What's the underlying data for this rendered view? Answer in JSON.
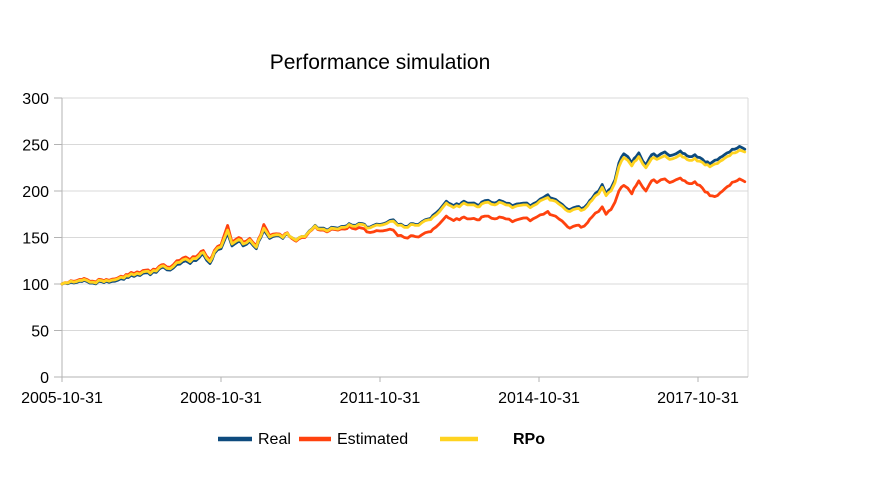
{
  "chart_data": {
    "type": "line",
    "title": "Performance simulation",
    "x_axis": {
      "tick_labels": [
        "2005-10-31",
        "2008-10-31",
        "2011-10-31",
        "2014-10-31",
        "2017-10-31"
      ],
      "tick_positions_months": [
        0,
        36,
        72,
        108,
        144
      ]
    },
    "y_axis": {
      "tick_labels": [
        "0",
        "50",
        "100",
        "150",
        "200",
        "250",
        "300"
      ],
      "tick_values": [
        0,
        50,
        100,
        150,
        200,
        250,
        300
      ],
      "range": [
        0,
        300
      ]
    },
    "grid": "horizontal-only",
    "legend_position": "bottom-center",
    "x_months_since_2005_10_31": [
      0,
      2,
      4,
      5,
      7,
      9,
      10,
      12,
      14,
      15,
      17,
      19,
      20,
      22,
      23,
      24.5,
      26,
      28,
      29,
      31,
      32,
      33.5,
      34.5,
      36,
      37.5,
      38.5,
      40,
      41,
      42.5,
      44,
      45,
      45.7,
      47,
      48.5,
      50,
      51,
      52,
      53,
      55,
      56,
      57.3,
      58.5,
      60,
      61,
      62.5,
      64,
      65,
      66.5,
      68,
      69,
      70.5,
      72,
      73.5,
      75,
      76,
      77.5,
      79,
      80,
      81.5,
      83,
      84,
      85.5,
      87,
      88,
      90,
      91,
      92.5,
      94,
      95,
      96.5,
      98,
      99,
      100.5,
      102,
      103,
      104.5,
      106,
      107.5,
      109,
      110,
      111,
      112.5,
      114,
      115,
      116.5,
      117.5,
      119,
      120,
      121.5,
      122.3,
      123.2,
      124.3,
      125.2,
      126.1,
      127.2,
      128.1,
      129,
      130,
      130.6,
      131.5,
      132.2,
      133,
      134,
      134.7,
      135.6,
      136.5,
      137.6,
      139,
      140,
      141,
      142,
      143.3,
      144.4,
      145.6,
      146.7,
      147.8,
      149,
      150,
      151.2,
      152.3,
      153.4,
      154.6
    ],
    "series": [
      {
        "name": "Real",
        "color": "#0e4b7e",
        "label_bold": false,
        "values": [
          100,
          102,
          103,
          104,
          101,
          102.5,
          103,
          103,
          105,
          107,
          110,
          112,
          110,
          116,
          118,
          115,
          121,
          125,
          122,
          128,
          132,
          122,
          133,
          138,
          155,
          141,
          146,
          141,
          146,
          138,
          150,
          158,
          149,
          152,
          149,
          154,
          150,
          147,
          151,
          157,
          163,
          160,
          158,
          161,
          160,
          162,
          165,
          163,
          165,
          161,
          163,
          164,
          166,
          169,
          164,
          162,
          165,
          164,
          167,
          170,
          174,
          180,
          189,
          186,
          185,
          189,
          187,
          185,
          188,
          190,
          187,
          190,
          187,
          184,
          186,
          187,
          184,
          188,
          193,
          196,
          192,
          188,
          182,
          180,
          183,
          181,
          186,
          192,
          200,
          207,
          197,
          203,
          212,
          230,
          240,
          237,
          230,
          237,
          241,
          232,
          228,
          235,
          240,
          237,
          240,
          242,
          238,
          240,
          243,
          240,
          237,
          239,
          236,
          231,
          229,
          233,
          236,
          239,
          242,
          245,
          248,
          245
        ]
      },
      {
        "name": "Estimated",
        "color": "#ff420e",
        "label_bold": false,
        "values": [
          100,
          103.5,
          105,
          106,
          103,
          104.5,
          105,
          105.5,
          107.5,
          110,
          113,
          115,
          113,
          119,
          121,
          118,
          125,
          129,
          126,
          132,
          136,
          126,
          136,
          142,
          163,
          145,
          150,
          145,
          149,
          141,
          153,
          164,
          152,
          154,
          151,
          155,
          149,
          146,
          150,
          156,
          162,
          158,
          156,
          159,
          158,
          159,
          162,
          159,
          160,
          156,
          156,
          157,
          158,
          158,
          152,
          150,
          152,
          151,
          153,
          156,
          159,
          165,
          173,
          170,
          169,
          172,
          170,
          169,
          172,
          173,
          170,
          172,
          170,
          167,
          169,
          171,
          168,
          172,
          175,
          178,
          174,
          170,
          164,
          160,
          163,
          161,
          166,
          172,
          178,
          183,
          175,
          180,
          188,
          200,
          206,
          203,
          197,
          206,
          211,
          204,
          200,
          207,
          212,
          209,
          212,
          213,
          209,
          212,
          214,
          211,
          208,
          210,
          206,
          199,
          195,
          194,
          198,
          202,
          206,
          210,
          213,
          210
        ]
      },
      {
        "name": "RPo",
        "color": "#ffd320",
        "label_bold": true,
        "values": [
          100,
          103,
          104,
          105,
          102,
          103.5,
          104,
          104.5,
          106.5,
          108.5,
          111.5,
          113.5,
          111.5,
          117.5,
          119.5,
          116.5,
          123,
          127,
          124,
          130,
          134,
          124,
          134.5,
          140,
          158,
          143,
          148,
          143,
          147.5,
          139.5,
          151.5,
          160,
          150.5,
          153,
          150,
          154.5,
          150,
          147,
          151,
          156.5,
          162.5,
          159,
          157,
          160,
          159,
          161,
          164,
          162,
          164,
          160,
          162,
          163,
          165,
          167.5,
          163,
          161,
          164,
          163,
          166,
          169,
          172,
          178,
          187,
          184,
          183,
          187,
          185,
          183,
          186,
          188,
          185,
          188,
          185,
          182,
          184,
          185,
          182,
          186,
          191,
          193,
          190,
          186,
          180,
          178,
          181,
          179,
          184,
          190,
          197,
          204,
          195,
          200,
          209,
          226,
          236,
          233,
          227,
          233,
          237,
          229,
          225,
          231,
          236,
          234,
          236,
          238,
          234,
          236,
          239,
          236,
          233,
          235,
          232,
          228,
          226,
          229,
          232,
          235,
          238,
          241,
          244,
          242
        ]
      }
    ],
    "colors": {
      "gridline": "#d9d9d9",
      "axis": "#b3b3b3",
      "text": "#000000",
      "background": "#ffffff"
    }
  }
}
